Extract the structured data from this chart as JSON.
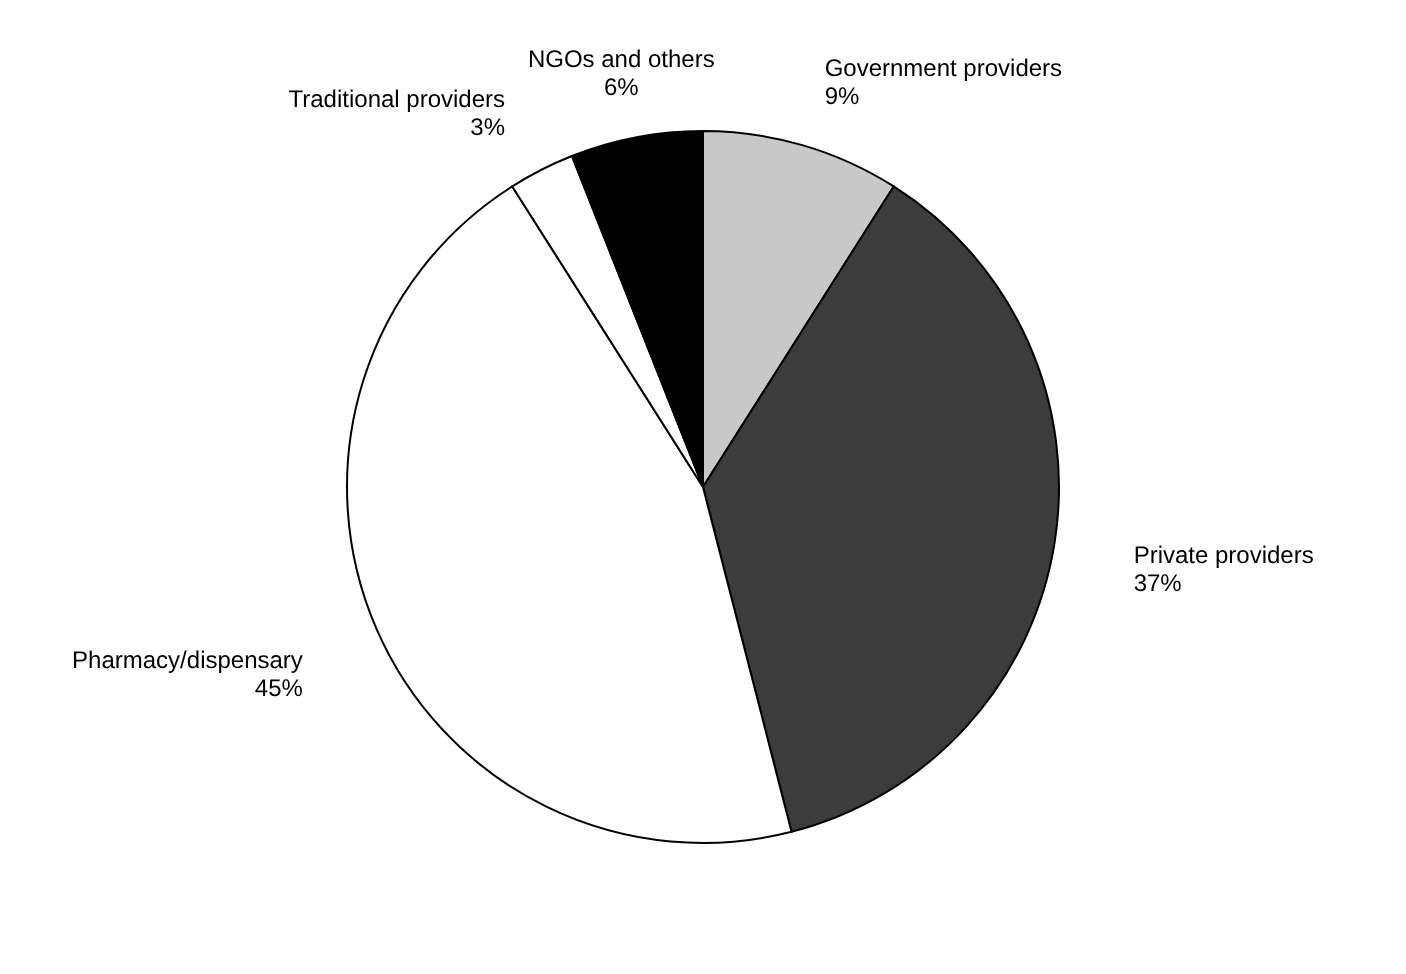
{
  "chart_data": {
    "type": "pie",
    "categories": [
      "Government providers",
      "Private providers",
      "Pharmacy/dispensary",
      "Traditional providers",
      "NGOs and others"
    ],
    "values": [
      9,
      37,
      45,
      3,
      6
    ],
    "value_labels": [
      "9%",
      "37%",
      "45%",
      "3%",
      "6%"
    ],
    "colors": [
      "#c8c8c8",
      "#3c3c3c",
      "#ffffff",
      "#ffffff",
      "#000000"
    ]
  }
}
